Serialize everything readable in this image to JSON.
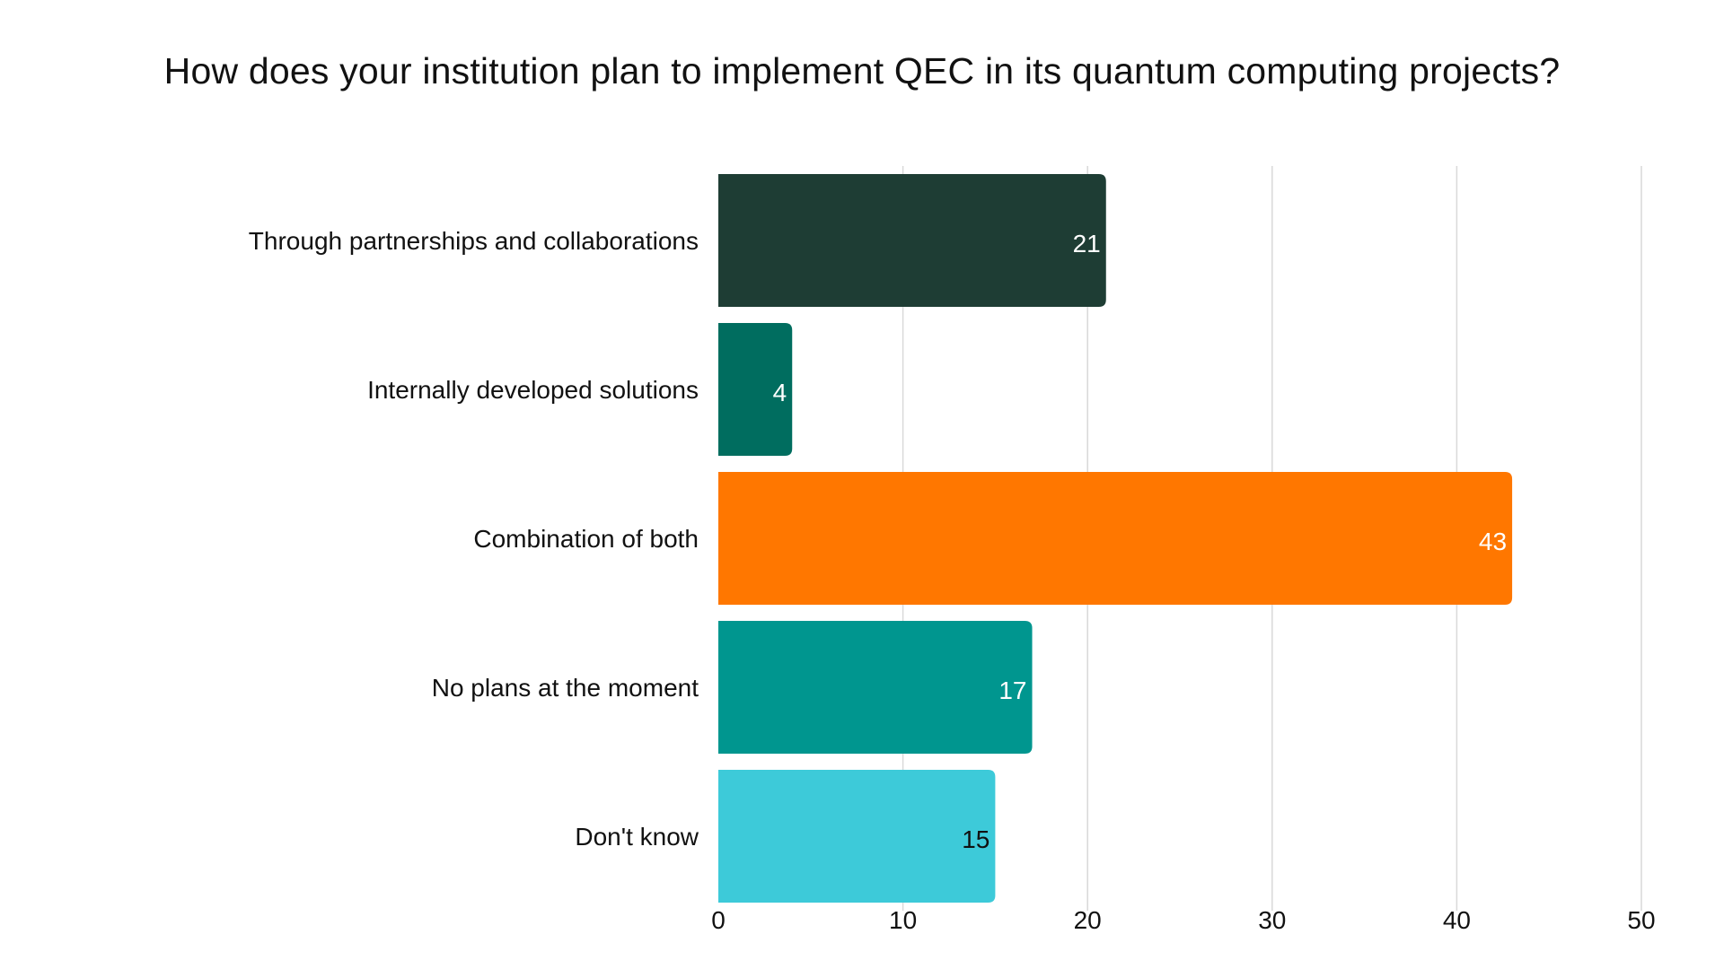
{
  "chart_data": {
    "type": "bar",
    "orientation": "horizontal",
    "title": "How does your institution plan to implement QEC in its quantum computing projects?",
    "xlabel": "",
    "ylabel": "",
    "categories": [
      "Through partnerships and collaborations",
      "Internally developed solutions",
      "Combination of both",
      "No plans at the moment",
      "Don't know"
    ],
    "values": [
      21,
      4,
      43,
      17,
      15
    ],
    "bar_colors": [
      "#1e3d34",
      "#006d5f",
      "#ff7700",
      "#00968f",
      "#3dcad9"
    ],
    "data_label_colors": [
      "#ffffff",
      "#ffffff",
      "#ffffff",
      "#ffffff",
      "#111111"
    ],
    "xlim": [
      0,
      50
    ],
    "xticks": [
      "0",
      "10",
      "20",
      "30",
      "40",
      "50"
    ],
    "grid": true,
    "legend": "none"
  }
}
